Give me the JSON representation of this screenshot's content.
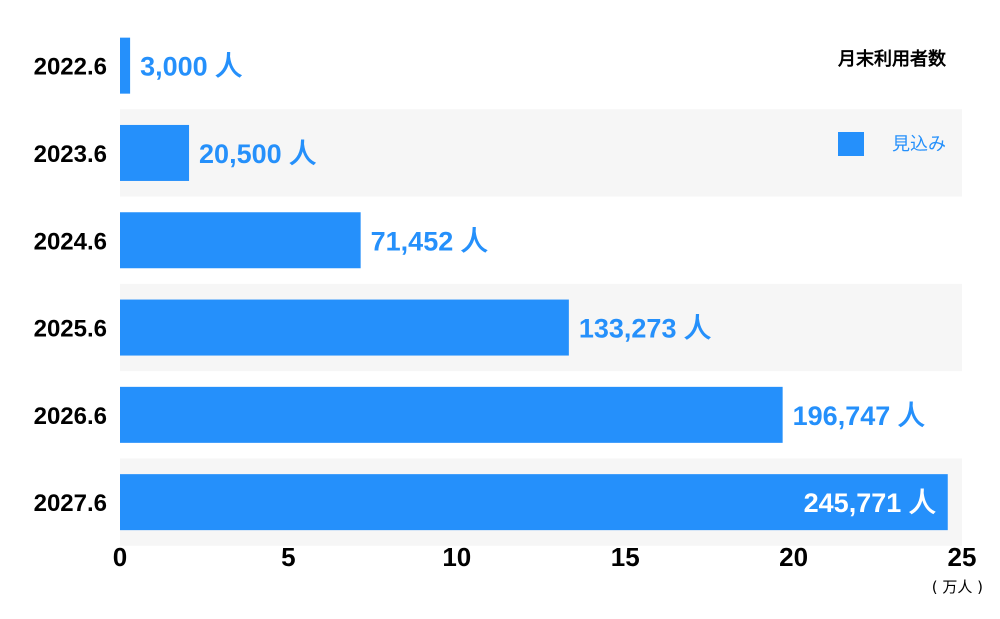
{
  "chart_data": {
    "type": "bar",
    "orientation": "horizontal",
    "title": "月末利用者数",
    "categories": [
      "2022.6",
      "2023.6",
      "2024.6",
      "2025.6",
      "2026.6",
      "2027.6"
    ],
    "values": [
      3000,
      20500,
      71452,
      133273,
      196747,
      245771
    ],
    "value_labels": [
      "3,000 人",
      "20,500 人",
      "71,452 人",
      "133,273 人",
      "196,747 人",
      "245,771 人"
    ],
    "x_ticks": [
      0,
      5,
      10,
      15,
      20,
      25
    ],
    "x_unit_label": "( 万人 )",
    "xlim": [
      0,
      250000
    ],
    "legend": {
      "label": "見込み",
      "placement": "top-right"
    },
    "grid": false,
    "colors": {
      "bar": "#2590fb",
      "band_alt": "#f6f6f6",
      "band": "#ffffff",
      "label_outside": "#2590fb",
      "label_inside": "#ffffff",
      "text": "#000000"
    }
  }
}
